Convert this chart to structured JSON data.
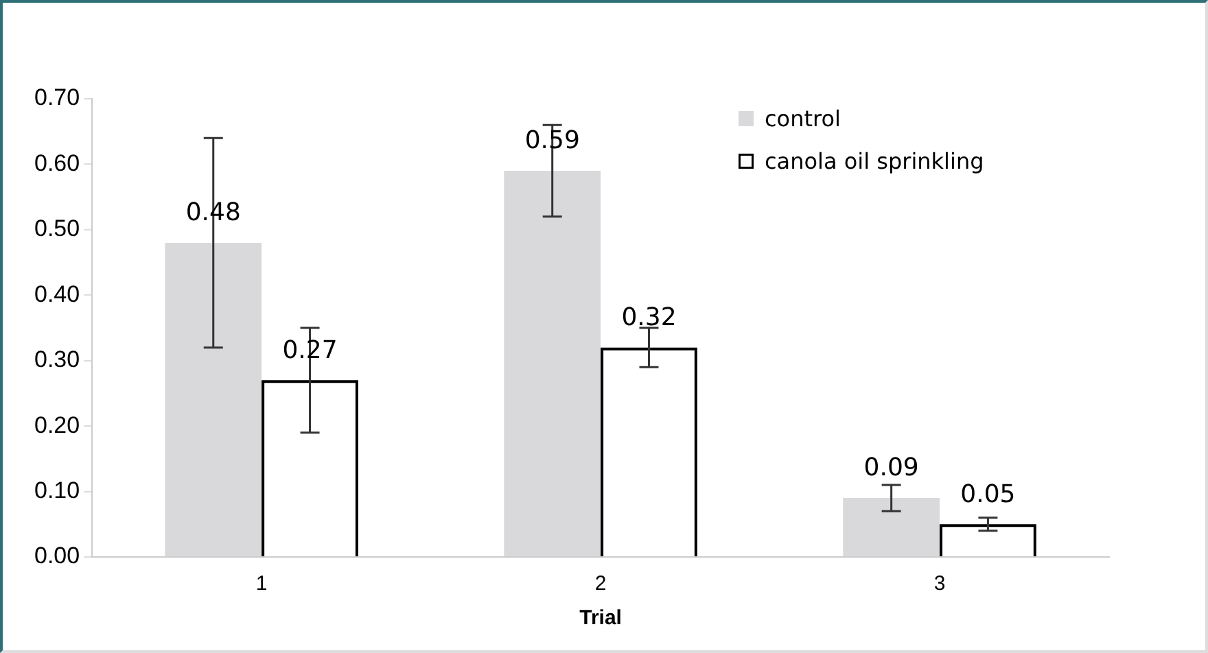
{
  "chart_data": {
    "type": "bar",
    "xlabel": "Trial",
    "categories": [
      "1",
      "2",
      "3"
    ],
    "series": [
      {
        "name": "control",
        "color": "#d9d9db",
        "values": [
          0.48,
          0.59,
          0.09
        ],
        "errors": [
          0.16,
          0.07,
          0.02
        ]
      },
      {
        "name": "canola oil sprinkling",
        "color": "#ffffff",
        "values": [
          0.27,
          0.32,
          0.05
        ],
        "errors": [
          0.08,
          0.03,
          0.01
        ]
      }
    ],
    "ylim": [
      0,
      0.7
    ],
    "yticks": [
      {
        "value": 0,
        "label": "0.00"
      },
      {
        "value": 0.1,
        "label": "0.10"
      },
      {
        "value": 0.2,
        "label": "0.20"
      },
      {
        "value": 0.3,
        "label": "0.30"
      },
      {
        "value": 0.4,
        "label": "0.40"
      },
      {
        "value": 0.5,
        "label": "0.50"
      },
      {
        "value": 0.6,
        "label": "0.60"
      },
      {
        "value": 0.7,
        "label": "0.70"
      }
    ],
    "data_labels": true,
    "grid": false,
    "legend": "top right"
  }
}
